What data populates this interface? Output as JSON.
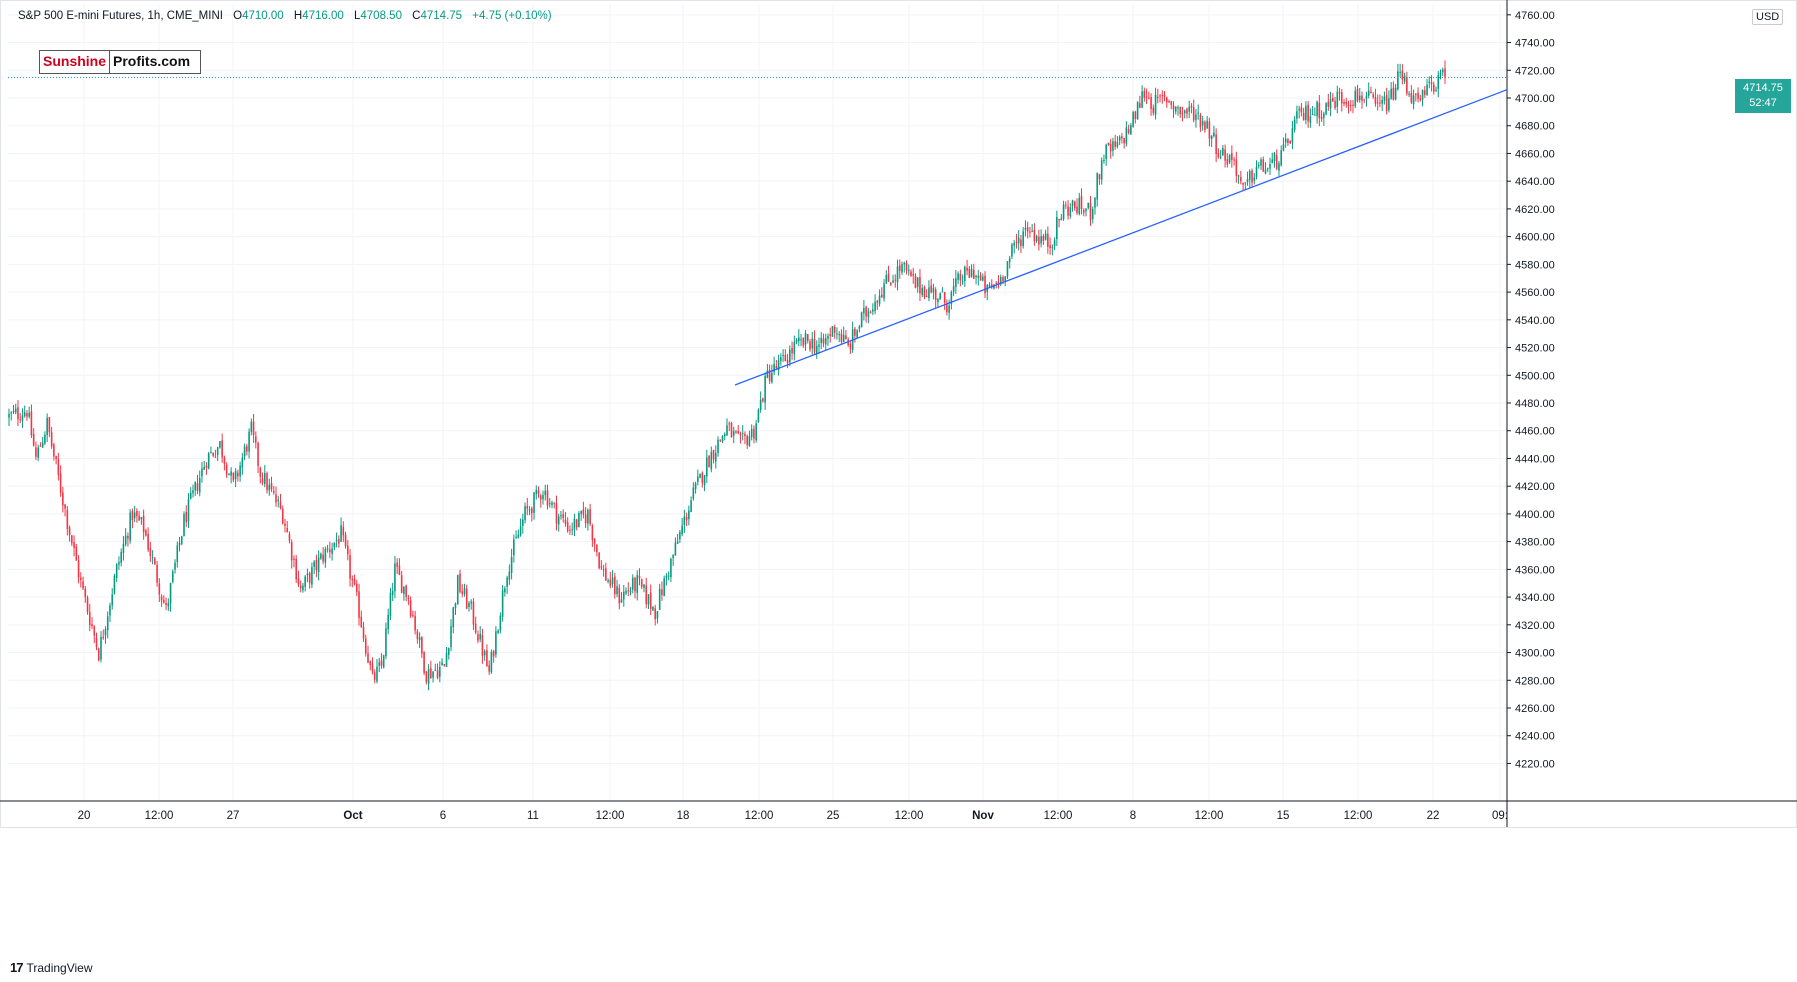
{
  "header": {
    "symbol": "S&P 500 E-mini Futures, 1h, CME_MINI",
    "open_label": "O",
    "open": "4710.00",
    "high_label": "H",
    "high": "4716.00",
    "low_label": "L",
    "low": "4708.50",
    "close_label": "C",
    "close": "4714.75",
    "change": "+4.75 (+0.10%)"
  },
  "logo": {
    "part1": "Sunshine",
    "part2": "Profits.com"
  },
  "currency": "USD",
  "last_price": {
    "price": "4714.75",
    "countdown": "52:47"
  },
  "branding": {
    "logo_mark": "17",
    "text": "TradingView"
  },
  "colors": {
    "up": "#089981",
    "down": "#f23645",
    "trendline": "#2962ff",
    "tag": "#26a69a",
    "grid": "#f0f3fa"
  },
  "chart_data": {
    "type": "candlestick",
    "title": "S&P 500 E-mini Futures, 1h, CME_MINI",
    "ylim": [
      4200,
      4750
    ],
    "y_ticks": [
      4220,
      4240,
      4260,
      4280,
      4300,
      4320,
      4340,
      4360,
      4380,
      4400,
      4420,
      4440,
      4460,
      4480,
      4500,
      4520,
      4540,
      4560,
      4580,
      4600,
      4620,
      4640,
      4660,
      4680,
      4700,
      4720,
      4740,
      4760
    ],
    "x_labels": [
      "20",
      "12:00",
      "27",
      "Oct",
      "6",
      "11",
      "12:00",
      "18",
      "12:00",
      "25",
      "12:00",
      "Nov",
      "12:00",
      "8",
      "12:00",
      "15",
      "12:00",
      "22",
      "09:"
    ],
    "x_label_emphasis": [
      false,
      false,
      false,
      true,
      false,
      false,
      false,
      false,
      false,
      false,
      false,
      true,
      false,
      false,
      false,
      false,
      false,
      false,
      false
    ],
    "anchors": [
      [
        0,
        4470
      ],
      [
        8,
        4475
      ],
      [
        12,
        4440
      ],
      [
        17,
        4465
      ],
      [
        26,
        4395
      ],
      [
        32,
        4350
      ],
      [
        40,
        4300
      ],
      [
        48,
        4360
      ],
      [
        55,
        4400
      ],
      [
        60,
        4390
      ],
      [
        70,
        4330
      ],
      [
        78,
        4395
      ],
      [
        88,
        4440
      ],
      [
        94,
        4450
      ],
      [
        100,
        4420
      ],
      [
        108,
        4460
      ],
      [
        112,
        4430
      ],
      [
        122,
        4400
      ],
      [
        130,
        4345
      ],
      [
        140,
        4370
      ],
      [
        148,
        4385
      ],
      [
        156,
        4330
      ],
      [
        162,
        4280
      ],
      [
        166,
        4290
      ],
      [
        172,
        4360
      ],
      [
        178,
        4340
      ],
      [
        186,
        4285
      ],
      [
        194,
        4290
      ],
      [
        200,
        4350
      ],
      [
        206,
        4330
      ],
      [
        214,
        4285
      ],
      [
        222,
        4360
      ],
      [
        230,
        4400
      ],
      [
        238,
        4418
      ],
      [
        244,
        4400
      ],
      [
        250,
        4390
      ],
      [
        258,
        4400
      ],
      [
        264,
        4360
      ],
      [
        272,
        4340
      ],
      [
        280,
        4350
      ],
      [
        288,
        4330
      ],
      [
        296,
        4370
      ],
      [
        304,
        4410
      ],
      [
        312,
        4440
      ],
      [
        320,
        4462
      ],
      [
        326,
        4450
      ],
      [
        332,
        4460
      ],
      [
        338,
        4500
      ],
      [
        344,
        4508
      ],
      [
        350,
        4520
      ],
      [
        356,
        4525
      ],
      [
        362,
        4520
      ],
      [
        368,
        4535
      ],
      [
        374,
        4520
      ],
      [
        380,
        4540
      ],
      [
        390,
        4565
      ],
      [
        398,
        4578
      ],
      [
        404,
        4565
      ],
      [
        412,
        4560
      ],
      [
        418,
        4552
      ],
      [
        424,
        4570
      ],
      [
        430,
        4575
      ],
      [
        436,
        4560
      ],
      [
        442,
        4570
      ],
      [
        448,
        4592
      ],
      [
        454,
        4608
      ],
      [
        458,
        4600
      ],
      [
        464,
        4595
      ],
      [
        470,
        4620
      ],
      [
        476,
        4622
      ],
      [
        482,
        4618
      ],
      [
        488,
        4660
      ],
      [
        494,
        4665
      ],
      [
        500,
        4680
      ],
      [
        506,
        4705
      ],
      [
        510,
        4695
      ],
      [
        516,
        4700
      ],
      [
        522,
        4690
      ],
      [
        528,
        4690
      ],
      [
        534,
        4680
      ],
      [
        540,
        4660
      ],
      [
        546,
        4655
      ],
      [
        550,
        4632
      ],
      [
        556,
        4650
      ],
      [
        562,
        4650
      ],
      [
        568,
        4660
      ],
      [
        574,
        4685
      ],
      [
        580,
        4690
      ],
      [
        586,
        4692
      ],
      [
        592,
        4700
      ],
      [
        598,
        4700
      ],
      [
        604,
        4702
      ],
      [
        610,
        4692
      ],
      [
        616,
        4700
      ],
      [
        620,
        4718
      ],
      [
        624,
        4705
      ],
      [
        628,
        4695
      ],
      [
        634,
        4710
      ],
      [
        640,
        4714.75
      ]
    ],
    "trendline": {
      "from": [
        4493,
        4493
      ],
      "to": [
        4706,
        4706
      ]
    },
    "last_close": 4714.75
  }
}
